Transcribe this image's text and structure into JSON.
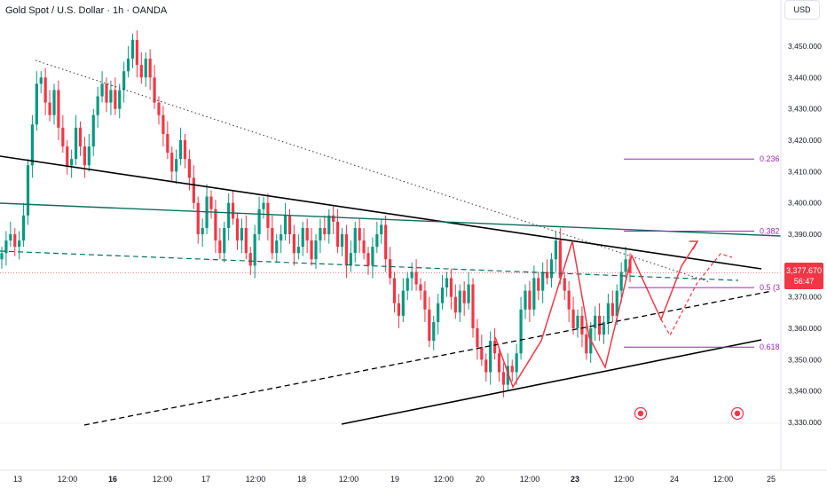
{
  "header": {
    "title": "Gold Spot / U.S. Dollar · 1h · OANDA",
    "currency": "USD"
  },
  "price_tag": {
    "price": "3,377.670",
    "countdown": "56:47"
  },
  "colors": {
    "up": "#089981",
    "down": "#f23645",
    "fib": "#9c27b0",
    "channel": "#0b6e5e",
    "trend": "#000000"
  },
  "chart_data": {
    "type": "candlestick",
    "title": "Gold Spot / U.S. Dollar · 1h · OANDA",
    "ylim": [
      3325,
      3462
    ],
    "y_ticks": [
      {
        "value": 3330,
        "label": "3,330.000"
      },
      {
        "value": 3340,
        "label": "3,340.000"
      },
      {
        "value": 3350,
        "label": "3,350.000"
      },
      {
        "value": 3360,
        "label": "3,360.000"
      },
      {
        "value": 3370,
        "label": "3,370.000"
      },
      {
        "value": 3380,
        "label": "3,380.000"
      },
      {
        "value": 3390,
        "label": "3,390.000"
      },
      {
        "value": 3400,
        "label": "3,400.000"
      },
      {
        "value": 3410,
        "label": "3,410.000"
      },
      {
        "value": 3420,
        "label": "3,420.000"
      },
      {
        "value": 3430,
        "label": "3,430.000"
      },
      {
        "value": 3440,
        "label": "3,440.000"
      },
      {
        "value": 3450,
        "label": "3,450.000"
      }
    ],
    "x_ticks": [
      {
        "label": "13",
        "bold": false
      },
      {
        "label": "12:00",
        "bold": false
      },
      {
        "label": "16",
        "bold": true
      },
      {
        "label": "12:00",
        "bold": false
      },
      {
        "label": "17",
        "bold": false
      },
      {
        "label": "12:00",
        "bold": false
      },
      {
        "label": "18",
        "bold": false
      },
      {
        "label": "12:00",
        "bold": false
      },
      {
        "label": "19",
        "bold": false
      },
      {
        "label": "12:00",
        "bold": false
      },
      {
        "label": "20",
        "bold": false
      },
      {
        "label": "12:00",
        "bold": false
      },
      {
        "label": "23",
        "bold": true
      },
      {
        "label": "12:00",
        "bold": false
      },
      {
        "label": "24",
        "bold": false
      },
      {
        "label": "12:00",
        "bold": false
      },
      {
        "label": "25",
        "bold": false
      }
    ],
    "closes": [
      3384,
      3388,
      3390,
      3386,
      3388,
      3396,
      3412,
      3425,
      3438,
      3440,
      3432,
      3428,
      3436,
      3424,
      3418,
      3412,
      3414,
      3424,
      3418,
      3412,
      3418,
      3428,
      3434,
      3438,
      3432,
      3436,
      3430,
      3436,
      3442,
      3446,
      3452,
      3444,
      3440,
      3446,
      3440,
      3432,
      3428,
      3422,
      3416,
      3410,
      3414,
      3420,
      3414,
      3408,
      3400,
      3390,
      3392,
      3402,
      3398,
      3388,
      3384,
      3392,
      3400,
      3395,
      3388,
      3392,
      3384,
      3380,
      3390,
      3398,
      3400,
      3392,
      3384,
      3388,
      3390,
      3396,
      3390,
      3384,
      3386,
      3392,
      3388,
      3382,
      3388,
      3392,
      3390,
      3396,
      3394,
      3386,
      3390,
      3380,
      3384,
      3392,
      3388,
      3384,
      3380,
      3386,
      3390,
      3393,
      3382,
      3376,
      3368,
      3364,
      3372,
      3376,
      3378,
      3374,
      3372,
      3366,
      3356,
      3362,
      3368,
      3373,
      3376,
      3370,
      3365,
      3372,
      3368,
      3374,
      3360,
      3354,
      3350,
      3346,
      3356,
      3352,
      3346,
      3342,
      3348,
      3346,
      3352,
      3366,
      3372,
      3366,
      3376,
      3372,
      3378,
      3376,
      3382,
      3388,
      3376,
      3372,
      3366,
      3360,
      3364,
      3358,
      3352,
      3360,
      3364,
      3358,
      3362,
      3368,
      3364,
      3372,
      3378,
      3382,
      3377.67
    ],
    "chart_date_range": {
      "first_bar_day": "13",
      "last_bar_day": "23"
    },
    "ohlc_hint": "Hourly OHLC bars; values estimated from axis",
    "fibonacci": [
      {
        "level": "0.236",
        "price": 3414
      },
      {
        "level": "0.382",
        "price": 3391
      },
      {
        "level": "0.5 (3",
        "price": 3373
      },
      {
        "level": "0.618",
        "price": 3354
      }
    ],
    "annotation": "Projected zig-zag path (red) with breakout above descending trendline"
  }
}
